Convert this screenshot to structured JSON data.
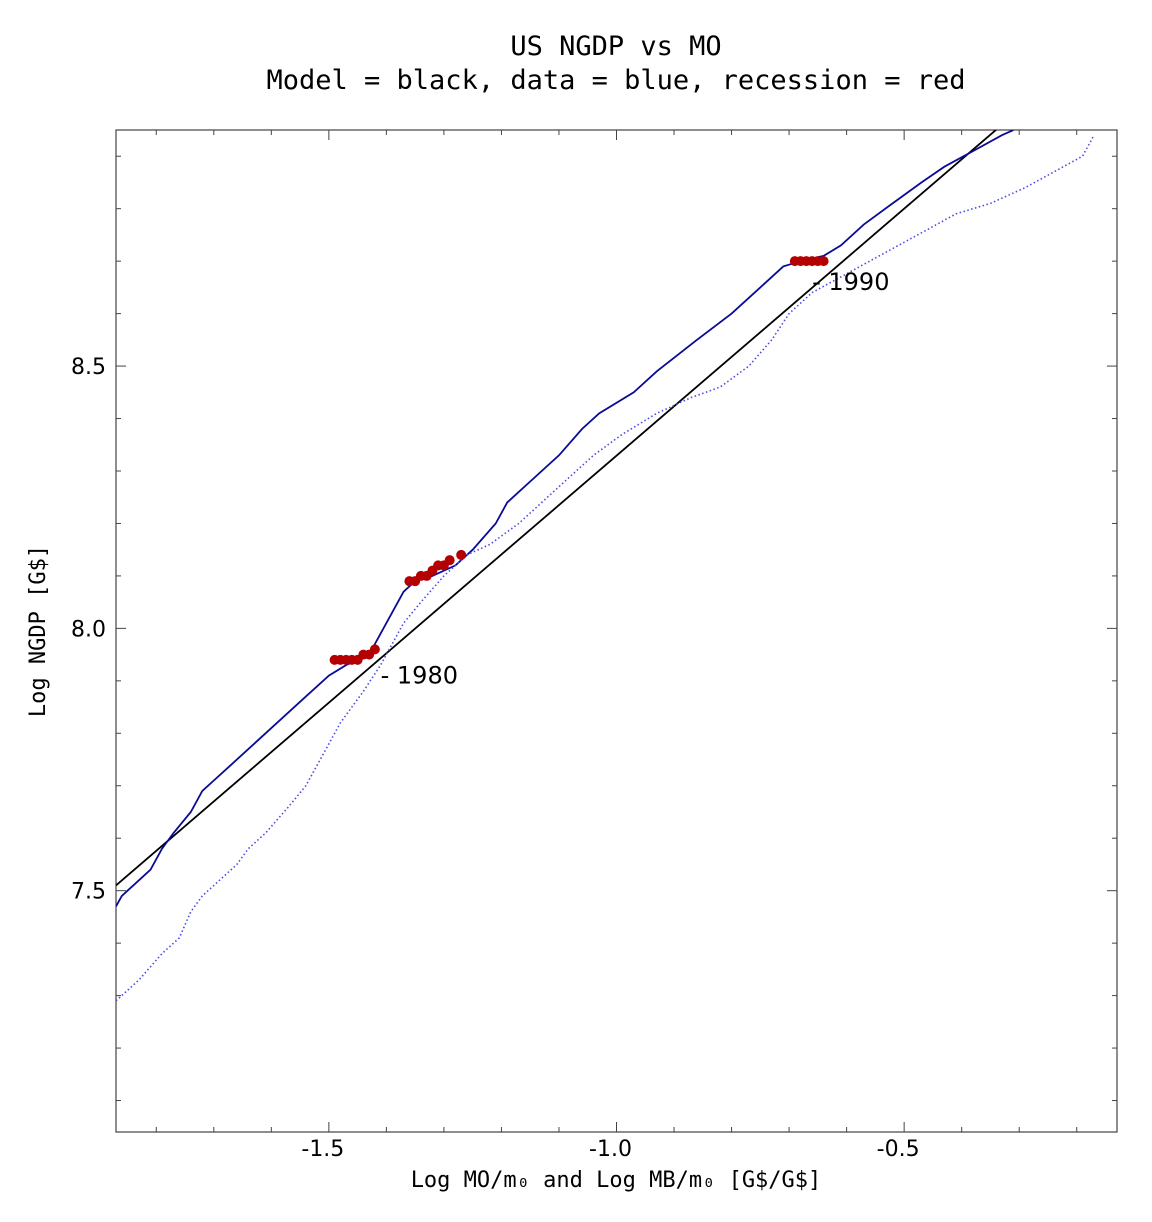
{
  "chart_data": {
    "type": "line",
    "title": "US NGDP vs MO",
    "subtitle": "Model = black, data = blue, recession = red",
    "xlabel": "Log MO/m₀ and Log MB/m₀ [G$/G$]",
    "ylabel": "Log NGDP [G$]",
    "xlim": [
      -1.87,
      -0.13
    ],
    "ylim": [
      7.04,
      8.95
    ],
    "x_ticks": [
      -1.5,
      -1.0,
      -0.5
    ],
    "x_tick_labels": [
      "-1.5",
      "-1.0",
      "-0.5"
    ],
    "y_ticks": [
      7.5,
      8.0,
      8.5
    ],
    "y_tick_labels": [
      "7.5",
      "8.0",
      "8.5"
    ],
    "grid": false,
    "series": [
      {
        "style": "black solid",
        "color": "#000000",
        "x": [
          -1.87,
          -0.33
        ],
        "y": [
          7.51,
          8.96
        ]
      },
      {
        "style": "blue solid",
        "color": "#0a0a96",
        "x": [
          -1.87,
          -1.86,
          -1.84,
          -1.81,
          -1.79,
          -1.77,
          -1.74,
          -1.72,
          -1.7,
          -1.67,
          -1.63,
          -1.6,
          -1.56,
          -1.54,
          -1.5,
          -1.47,
          -1.43,
          -1.41,
          -1.38,
          -1.37,
          -1.35,
          -1.32,
          -1.28,
          -1.25,
          -1.21,
          -1.19,
          -1.15,
          -1.1,
          -1.06,
          -1.03,
          -0.97,
          -0.93,
          -0.86,
          -0.8,
          -0.75,
          -0.71,
          -0.68,
          -0.64,
          -0.61,
          -0.57,
          -0.52,
          -0.47,
          -0.43,
          -0.38,
          -0.33,
          -0.31
        ],
        "y": [
          7.47,
          7.49,
          7.51,
          7.54,
          7.58,
          7.61,
          7.65,
          7.69,
          7.71,
          7.74,
          7.78,
          7.81,
          7.85,
          7.87,
          7.91,
          7.93,
          7.95,
          7.99,
          8.05,
          8.07,
          8.09,
          8.1,
          8.12,
          8.15,
          8.2,
          8.24,
          8.28,
          8.33,
          8.38,
          8.41,
          8.45,
          8.49,
          8.55,
          8.6,
          8.65,
          8.69,
          8.7,
          8.71,
          8.73,
          8.77,
          8.81,
          8.85,
          8.88,
          8.91,
          8.94,
          8.95
        ]
      },
      {
        "style": "blue dotted",
        "color": "#4b4be6",
        "x": [
          -1.87,
          -1.83,
          -1.79,
          -1.76,
          -1.74,
          -1.72,
          -1.69,
          -1.66,
          -1.64,
          -1.61,
          -1.57,
          -1.54,
          -1.51,
          -1.48,
          -1.44,
          -1.41,
          -1.39,
          -1.37,
          -1.34,
          -1.3,
          -1.26,
          -1.22,
          -1.17,
          -1.13,
          -1.08,
          -1.04,
          -0.99,
          -0.93,
          -0.87,
          -0.82,
          -0.77,
          -0.73,
          -0.7,
          -0.66,
          -0.61,
          -0.56,
          -0.51,
          -0.46,
          -0.41,
          -0.35,
          -0.29,
          -0.24,
          -0.19,
          -0.17
        ],
        "y": [
          7.29,
          7.33,
          7.38,
          7.41,
          7.46,
          7.49,
          7.52,
          7.55,
          7.58,
          7.61,
          7.66,
          7.7,
          7.76,
          7.82,
          7.88,
          7.93,
          7.97,
          8.01,
          8.05,
          8.1,
          8.14,
          8.16,
          8.2,
          8.24,
          8.29,
          8.33,
          8.37,
          8.41,
          8.44,
          8.46,
          8.5,
          8.55,
          8.6,
          8.64,
          8.67,
          8.7,
          8.73,
          8.76,
          8.79,
          8.81,
          8.84,
          8.87,
          8.9,
          8.94
        ]
      },
      {
        "style": "red markers",
        "color": "#b40000",
        "x": [
          -1.49,
          -1.48,
          -1.47,
          -1.46,
          -1.45,
          -1.44,
          -1.43,
          -1.42,
          -1.36,
          -1.35,
          -1.34,
          -1.33,
          -1.32,
          -1.31,
          -1.3,
          -1.29,
          -1.27,
          -0.69,
          -0.68,
          -0.67,
          -0.66,
          -0.65,
          -0.64
        ],
        "y": [
          7.94,
          7.94,
          7.94,
          7.94,
          7.94,
          7.95,
          7.95,
          7.96,
          8.09,
          8.09,
          8.1,
          8.1,
          8.11,
          8.12,
          8.12,
          8.13,
          8.14,
          8.7,
          8.7,
          8.7,
          8.7,
          8.7,
          8.7
        ]
      }
    ],
    "annotations": [
      {
        "text": "- 1980",
        "x": -1.41,
        "y": 7.91
      },
      {
        "text": "- 1990",
        "x": -0.66,
        "y": 8.66
      }
    ]
  }
}
